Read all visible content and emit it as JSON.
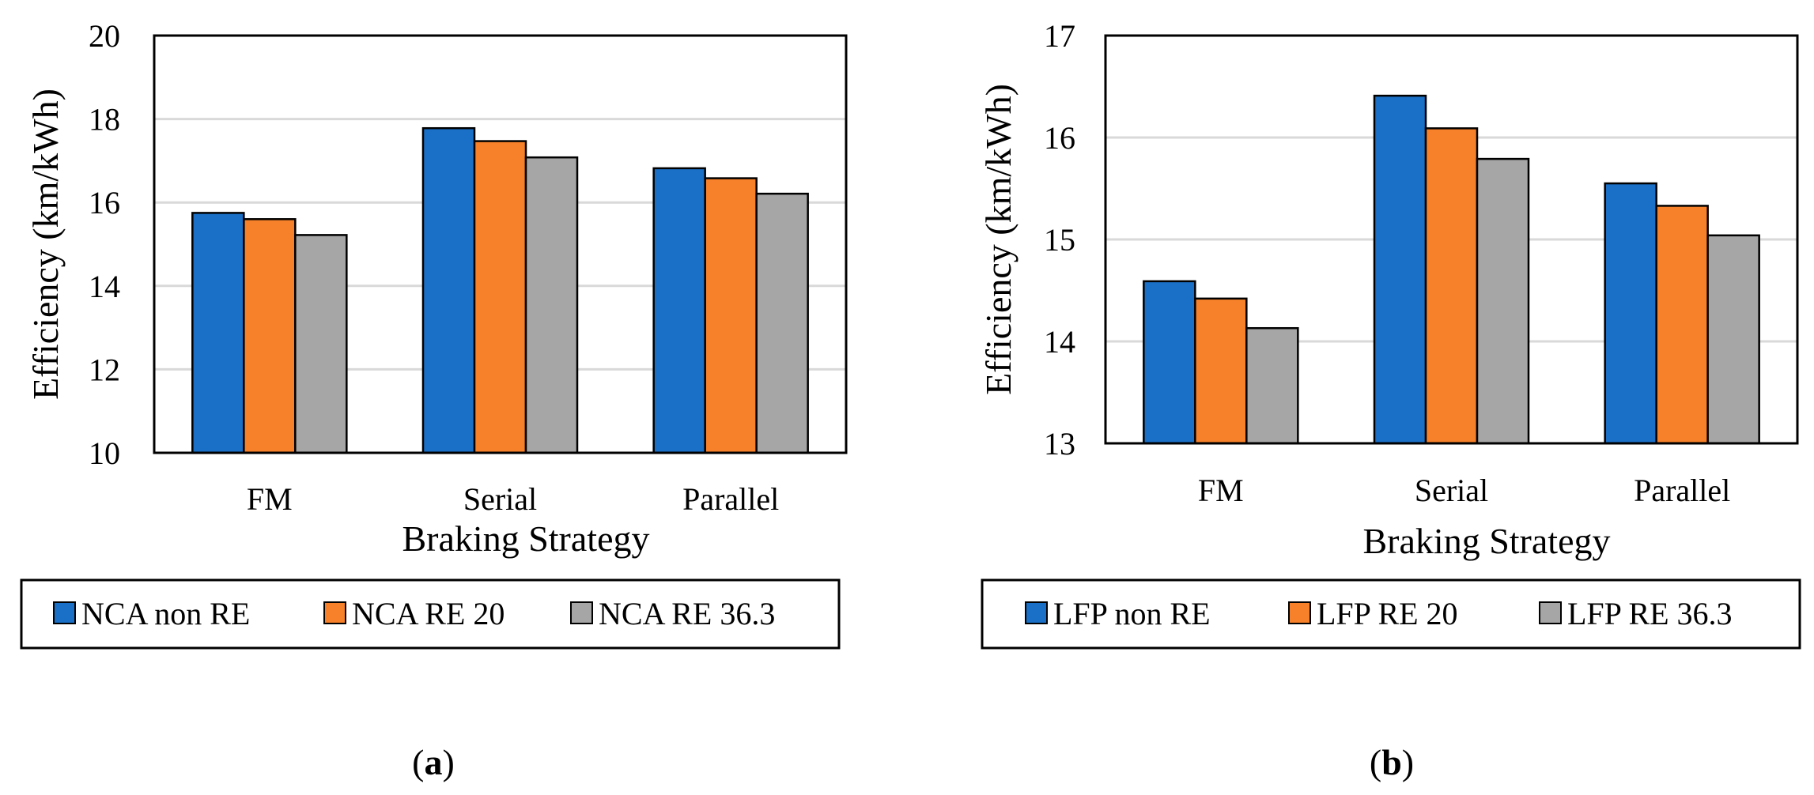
{
  "chart_data": [
    {
      "type": "bar",
      "panel_label": "a",
      "title": "",
      "xlabel": "Braking Strategy",
      "ylabel": "Efficiency (km/kWh)",
      "categories": [
        "FM",
        "Serial",
        "Parallel"
      ],
      "ylim": [
        10,
        20
      ],
      "yticks": [
        "10",
        "12",
        "14",
        "16",
        "18",
        "20"
      ],
      "grid": true,
      "legend_position": "bottom",
      "series": [
        {
          "name": "NCA non RE",
          "color": "#1a70c7",
          "values": [
            15.75,
            17.78,
            16.82
          ]
        },
        {
          "name": "NCA RE 20",
          "color": "#f7812a",
          "values": [
            15.6,
            17.47,
            16.58
          ]
        },
        {
          "name": "NCA RE 36.3",
          "color": "#a6a6a6",
          "values": [
            15.22,
            17.08,
            16.21
          ]
        }
      ]
    },
    {
      "type": "bar",
      "panel_label": "b",
      "title": "",
      "xlabel": "Braking Strategy",
      "ylabel": "Efficiency (km/kWh)",
      "categories": [
        "FM",
        "Serial",
        "Parallel"
      ],
      "ylim": [
        13,
        17
      ],
      "yticks": [
        "13",
        "14",
        "15",
        "16",
        "17"
      ],
      "grid": true,
      "legend_position": "bottom",
      "series": [
        {
          "name": "LFP non RE",
          "color": "#1a70c7",
          "values": [
            14.59,
            16.41,
            15.55
          ]
        },
        {
          "name": "LFP RE 20",
          "color": "#f7812a",
          "values": [
            14.42,
            16.09,
            15.33
          ]
        },
        {
          "name": "LFP RE 36.3",
          "color": "#a6a6a6",
          "values": [
            14.13,
            15.79,
            15.04
          ]
        }
      ]
    }
  ]
}
